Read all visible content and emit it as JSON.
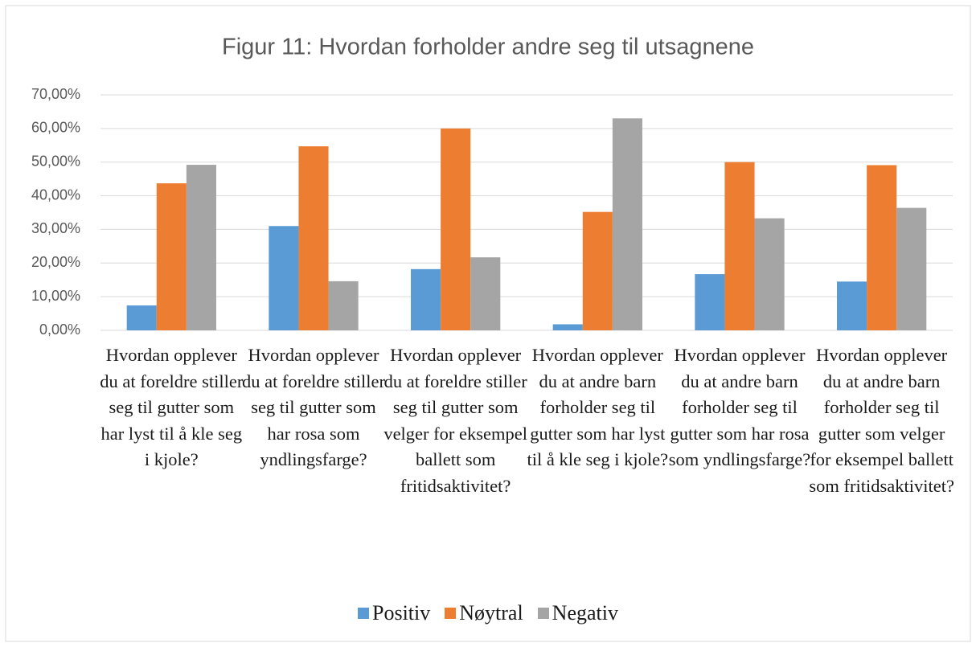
{
  "chart_data": {
    "type": "bar",
    "title": "Figur 11: Hvordan forholder andre seg til utsagnene",
    "categories": [
      "Hvordan opplever du at foreldre stiller seg til gutter som har lyst til å kle seg i kjole?",
      "Hvordan opplever du at foreldre stiller seg til gutter som har rosa som yndlingsfarge?",
      "Hvordan opplever du at foreldre stiller seg til gutter som velger for eksempel ballett som fritidsaktivitet?",
      "Hvordan opplever du at andre barn forholder seg til gutter som har lyst til å kle seg i kjole?",
      "Hvordan opplever du at andre barn forholder seg til gutter som har rosa som yndlingsfarge?",
      "Hvordan opplever du at andre barn forholder seg til gutter som velger for eksempel ballett som fritidsaktivitet?"
    ],
    "series": [
      {
        "name": "Positiv",
        "color": "#5b9bd5",
        "values": [
          7.4,
          31.0,
          18.2,
          1.8,
          16.7,
          14.5
        ]
      },
      {
        "name": "Nøytral",
        "color": "#ed7d31",
        "values": [
          43.7,
          54.7,
          60.0,
          35.2,
          50.0,
          49.1
        ]
      },
      {
        "name": "Negativ",
        "color": "#a5a5a5",
        "values": [
          49.2,
          14.6,
          21.7,
          63.0,
          33.3,
          36.4
        ]
      }
    ],
    "ylim": [
      0,
      70
    ],
    "yticks": [
      {
        "value": 0,
        "label": "0,00%"
      },
      {
        "value": 10,
        "label": "10,00%"
      },
      {
        "value": 20,
        "label": "20,00%"
      },
      {
        "value": 30,
        "label": "30,00%"
      },
      {
        "value": 40,
        "label": "40,00%"
      },
      {
        "value": 50,
        "label": "50,00%"
      },
      {
        "value": 60,
        "label": "60,00%"
      },
      {
        "value": 70,
        "label": "70,00%"
      }
    ],
    "grid": true,
    "legend": "bottom"
  }
}
